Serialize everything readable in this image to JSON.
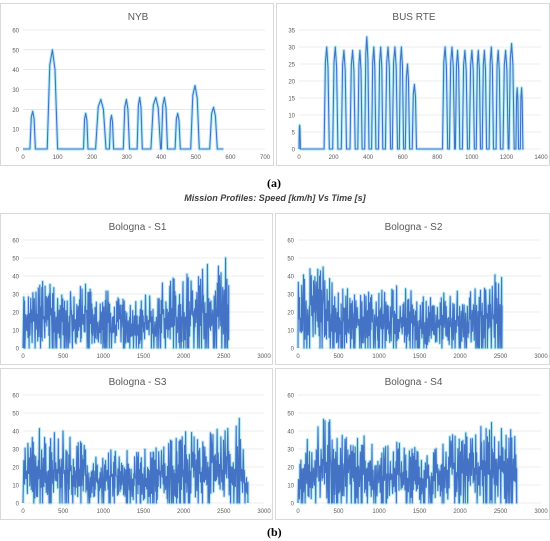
{
  "figure": {
    "caption_a": "(a)",
    "caption_b": "(b)",
    "group_title": "Mission Profiles: Speed [km/h] Vs Time [s]"
  },
  "colors": {
    "line": "#4472c4",
    "glow": "#7fdcf0",
    "accent": "#7030a0",
    "grid": "#d9d9d9",
    "tick": "#595959"
  },
  "chart_data": [
    {
      "id": "nyb",
      "type": "line",
      "title": "NYB",
      "xlabel": "",
      "ylabel": "",
      "xlim": [
        0,
        700
      ],
      "ylim": [
        0,
        60
      ],
      "xticks": [
        0,
        100,
        200,
        300,
        400,
        500,
        600,
        700
      ],
      "yticks": [
        0,
        10,
        20,
        30,
        40,
        50,
        60
      ],
      "grid": "horizontal",
      "bursts": [
        [
          20,
          36,
          19
        ],
        [
          70,
          100,
          50
        ],
        [
          175,
          188,
          18
        ],
        [
          210,
          240,
          25
        ],
        [
          250,
          262,
          17
        ],
        [
          290,
          308,
          25
        ],
        [
          330,
          345,
          26
        ],
        [
          370,
          398,
          26
        ],
        [
          400,
          418,
          26
        ],
        [
          440,
          455,
          18
        ],
        [
          485,
          510,
          32
        ],
        [
          540,
          562,
          21
        ]
      ],
      "duration": 580
    },
    {
      "id": "bus-rte",
      "type": "line",
      "title": "BUS RTE",
      "xlabel": "",
      "ylabel": "",
      "xlim": [
        0,
        1400
      ],
      "ylim": [
        0,
        35
      ],
      "xticks": [
        0,
        200,
        400,
        600,
        800,
        1000,
        1200,
        1400
      ],
      "yticks": [
        0,
        5,
        10,
        15,
        20,
        25,
        30,
        35
      ],
      "grid": "horizontal",
      "bursts": [
        [
          0,
          8,
          7
        ],
        [
          145,
          175,
          30
        ],
        [
          195,
          225,
          30
        ],
        [
          245,
          275,
          29
        ],
        [
          295,
          325,
          29
        ],
        [
          340,
          365,
          29
        ],
        [
          380,
          405,
          33
        ],
        [
          420,
          445,
          30
        ],
        [
          460,
          485,
          30
        ],
        [
          500,
          530,
          30
        ],
        [
          540,
          570,
          30
        ],
        [
          580,
          605,
          30
        ],
        [
          615,
          640,
          25
        ],
        [
          655,
          680,
          19
        ],
        [
          830,
          860,
          30
        ],
        [
          870,
          900,
          30
        ],
        [
          905,
          930,
          29
        ],
        [
          945,
          975,
          29
        ],
        [
          985,
          1015,
          29
        ],
        [
          1025,
          1050,
          29
        ],
        [
          1060,
          1085,
          29
        ],
        [
          1100,
          1125,
          30
        ],
        [
          1140,
          1165,
          29
        ],
        [
          1180,
          1210,
          29
        ],
        [
          1215,
          1245,
          31
        ],
        [
          1255,
          1270,
          18
        ],
        [
          1280,
          1295,
          18
        ]
      ],
      "duration": 1300
    },
    {
      "id": "bologna-s1",
      "type": "line",
      "title": "Bologna - S1",
      "xlabel": "",
      "ylabel": "",
      "xlim": [
        0,
        3000
      ],
      "ylim": [
        0,
        60
      ],
      "xticks": [
        0,
        500,
        1000,
        1500,
        2000,
        2500,
        3000
      ],
      "yticks": [
        0,
        10,
        20,
        30,
        40,
        50,
        60
      ],
      "grid": "horizontal",
      "duration": 2560,
      "seed": 11,
      "anchors": [
        [
          0,
          30
        ],
        [
          250,
          38
        ],
        [
          500,
          32
        ],
        [
          800,
          36
        ],
        [
          1000,
          35
        ],
        [
          1200,
          28
        ],
        [
          1500,
          30
        ],
        [
          1700,
          36
        ],
        [
          1900,
          40
        ],
        [
          2100,
          45
        ],
        [
          2300,
          48
        ],
        [
          2500,
          52
        ],
        [
          2560,
          55
        ]
      ]
    },
    {
      "id": "bologna-s2",
      "type": "line",
      "title": "Bologna - S2",
      "xlabel": "",
      "ylabel": "",
      "xlim": [
        0,
        3000
      ],
      "ylim": [
        0,
        60
      ],
      "xticks": [
        0,
        500,
        1000,
        1500,
        2000,
        2500,
        3000
      ],
      "yticks": [
        0,
        10,
        20,
        30,
        40,
        50,
        60
      ],
      "grid": "horizontal",
      "duration": 2520,
      "seed": 23,
      "anchors": [
        [
          0,
          38
        ],
        [
          200,
          50
        ],
        [
          400,
          40
        ],
        [
          600,
          34
        ],
        [
          800,
          30
        ],
        [
          1000,
          35
        ],
        [
          1200,
          36
        ],
        [
          1500,
          30
        ],
        [
          1700,
          32
        ],
        [
          2000,
          35
        ],
        [
          2200,
          33
        ],
        [
          2400,
          40
        ],
        [
          2520,
          45
        ]
      ]
    },
    {
      "id": "bologna-s3",
      "type": "line",
      "title": "Bologna - S3",
      "xlabel": "",
      "ylabel": "",
      "xlim": [
        0,
        3000
      ],
      "ylim": [
        0,
        60
      ],
      "xticks": [
        0,
        500,
        1000,
        1500,
        2000,
        2500,
        3000
      ],
      "yticks": [
        0,
        10,
        20,
        30,
        40,
        50,
        60
      ],
      "grid": "horizontal",
      "duration": 2800,
      "seed": 37,
      "anchors": [
        [
          0,
          30
        ],
        [
          200,
          44
        ],
        [
          400,
          42
        ],
        [
          700,
          36
        ],
        [
          1000,
          30
        ],
        [
          1300,
          32
        ],
        [
          1600,
          30
        ],
        [
          1900,
          38
        ],
        [
          2100,
          42
        ],
        [
          2300,
          40
        ],
        [
          2500,
          42
        ],
        [
          2700,
          48
        ],
        [
          2800,
          10
        ]
      ]
    },
    {
      "id": "bologna-s4",
      "type": "line",
      "title": "Bologna - S4",
      "xlabel": "",
      "ylabel": "",
      "xlim": [
        0,
        3000
      ],
      "ylim": [
        0,
        60
      ],
      "xticks": [
        0,
        500,
        1000,
        1500,
        2000,
        2500,
        3000
      ],
      "yticks": [
        0,
        10,
        20,
        30,
        40,
        50,
        60
      ],
      "grid": "horizontal",
      "duration": 2700,
      "seed": 53,
      "anchors": [
        [
          0,
          32
        ],
        [
          300,
          52
        ],
        [
          500,
          42
        ],
        [
          800,
          38
        ],
        [
          1000,
          30
        ],
        [
          1200,
          34
        ],
        [
          1500,
          30
        ],
        [
          1800,
          36
        ],
        [
          2000,
          40
        ],
        [
          2300,
          46
        ],
        [
          2500,
          45
        ],
        [
          2650,
          52
        ],
        [
          2700,
          28
        ]
      ]
    }
  ]
}
